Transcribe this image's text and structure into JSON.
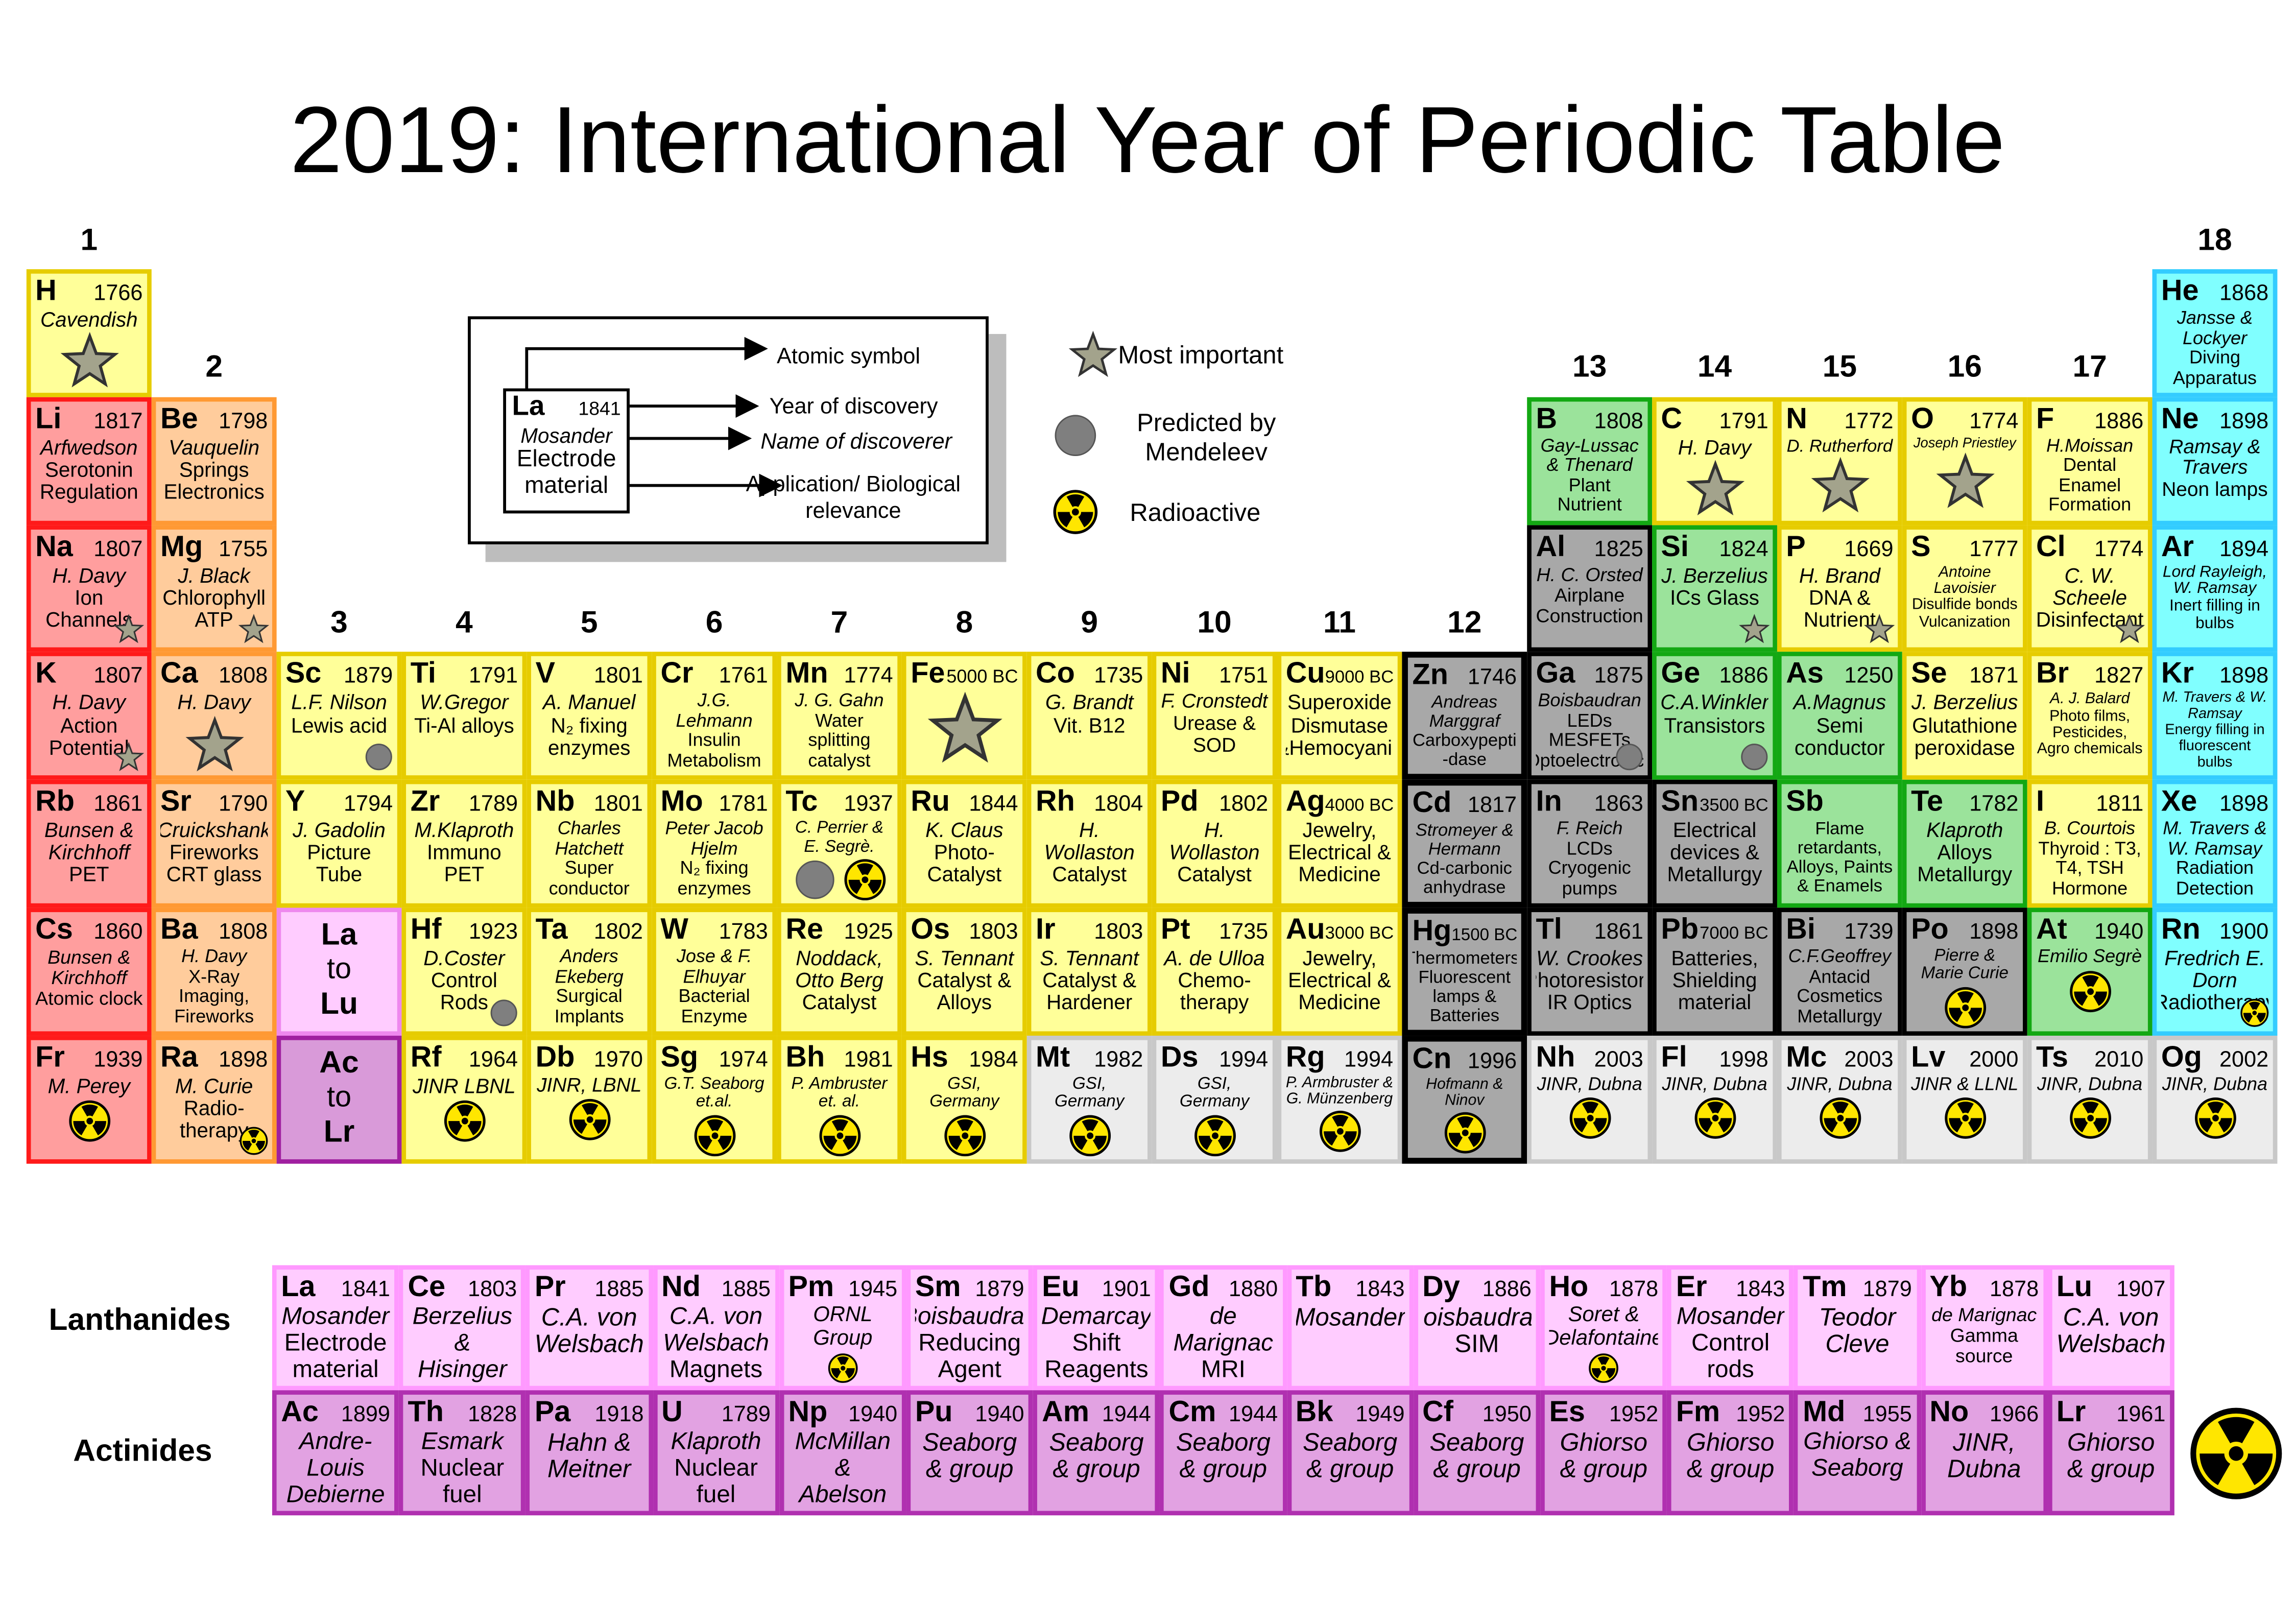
{
  "title": "2019: International Year of Periodic Table",
  "groups": [
    1,
    2,
    3,
    4,
    5,
    6,
    7,
    8,
    9,
    10,
    11,
    12,
    13,
    14,
    15,
    16,
    17,
    18
  ],
  "legend": {
    "sym": "La",
    "year": 1841,
    "by": "Mosander",
    "use": "Electrode material",
    "labels": [
      "Atomic symbol",
      "Year of discovery",
      "Name of discoverer",
      "Application/ Biological relevance"
    ],
    "icons": [
      "Most important",
      "Predicted by Mendeleev",
      "Radioactive"
    ]
  },
  "series_labels": [
    "Lanthanides",
    "Actinides"
  ],
  "placeholders": [
    [
      "La",
      "to",
      "Lu"
    ],
    [
      "Ac",
      "to",
      "Lr"
    ]
  ],
  "elements": [
    {
      "sym": "H",
      "year": 1766,
      "by": "Cavendish",
      "star": true
    },
    {
      "sym": "He",
      "year": 1868,
      "by": "Jansse & Lockyer",
      "use": "Diving Apparatus"
    },
    {
      "sym": "Li",
      "year": 1817,
      "by": "Arfwedson",
      "use": "Serotonin Regulation"
    },
    {
      "sym": "Be",
      "year": 1798,
      "by": "Vauquelin",
      "use": "Springs Electronics"
    },
    {
      "sym": "B",
      "year": 1808,
      "by": "Gay-Lussac & Thenard",
      "use": "Plant Nutrient"
    },
    {
      "sym": "C",
      "year": 1791,
      "by": "H. Davy",
      "star": true
    },
    {
      "sym": "N",
      "year": 1772,
      "by": "D. Rutherford",
      "star": true
    },
    {
      "sym": "O",
      "year": 1774,
      "by": "Joseph Priestley",
      "star": true
    },
    {
      "sym": "F",
      "year": 1886,
      "by": "H.Moissan",
      "use": "Dental Enamel Formation"
    },
    {
      "sym": "Ne",
      "year": 1898,
      "by": "Ramsay & Travers",
      "use": "Neon lamps"
    },
    {
      "sym": "Na",
      "year": 1807,
      "by": "H. Davy",
      "use": "Ion Channels",
      "star": true
    },
    {
      "sym": "Mg",
      "year": 1755,
      "by": "J. Black",
      "use": "Chlorophyll ATP",
      "star": true
    },
    {
      "sym": "Al",
      "year": 1825,
      "by": "H. C. Orsted",
      "use": "Airplane Construction"
    },
    {
      "sym": "Si",
      "year": 1824,
      "by": "J. Berzelius",
      "use": "ICs Glass",
      "star": true
    },
    {
      "sym": "P",
      "year": 1669,
      "by": "H. Brand",
      "use": "DNA & Nutrient",
      "star": true
    },
    {
      "sym": "S",
      "year": 1777,
      "by": "Antoine Lavoisier",
      "use": "Disulfide bonds Vulcanization"
    },
    {
      "sym": "Cl",
      "year": 1774,
      "by": "C. W. Scheele",
      "use": "Disinfectant",
      "star": true
    },
    {
      "sym": "Ar",
      "year": 1894,
      "by": "Lord Rayleigh, W. Ramsay",
      "use": "Inert filling in bulbs"
    },
    {
      "sym": "K",
      "year": 1807,
      "by": "H. Davy",
      "use": "Action Potential",
      "star": true
    },
    {
      "sym": "Ca",
      "year": 1808,
      "by": "H. Davy",
      "star": true
    },
    {
      "sym": "Sc",
      "year": 1879,
      "by": "L.F. Nilson",
      "use": "Lewis acid",
      "predicted": true
    },
    {
      "sym": "Ti",
      "year": 1791,
      "by": "W.Gregor",
      "use": "Ti-Al alloys"
    },
    {
      "sym": "V",
      "year": 1801,
      "by": "A. Manuel",
      "use": "N₂ fixing enzymes"
    },
    {
      "sym": "Cr",
      "year": 1761,
      "by": "J.G. Lehmann",
      "use": "Insulin Metabolism"
    },
    {
      "sym": "Mn",
      "year": 1774,
      "by": "J. G. Gahn",
      "use": "Water splitting catalyst"
    },
    {
      "sym": "Fe",
      "year": "5000 BC",
      "star": true
    },
    {
      "sym": "Co",
      "year": 1735,
      "by": "G. Brandt",
      "use": "Vit. B12"
    },
    {
      "sym": "Ni",
      "year": 1751,
      "by": "F. Cronstedt",
      "use": "Urease & SOD"
    },
    {
      "sym": "Cu",
      "year": "9000 BC",
      "use": "Superoxide Dismutase &Hemocyanin"
    },
    {
      "sym": "Zn",
      "year": 1746,
      "by": "Andreas Marggraf",
      "use": "Carboxypepti -dase"
    },
    {
      "sym": "Ga",
      "year": 1875,
      "by": "Boisbaudran",
      "use": "LEDs MESFETs Optoelectronics",
      "predicted": true
    },
    {
      "sym": "Ge",
      "year": 1886,
      "by": "C.A.Winkler",
      "use": "Transistors",
      "predicted": true
    },
    {
      "sym": "As",
      "year": 1250,
      "by": "A.Magnus",
      "use": "Semi conductor"
    },
    {
      "sym": "Se",
      "year": 1871,
      "by": "J. Berzelius",
      "use": "Glutathione peroxidase"
    },
    {
      "sym": "Br",
      "year": 1827,
      "by": "A. J. Balard",
      "use": "Photo films, Pesticides, Agro chemicals"
    },
    {
      "sym": "Kr",
      "year": 1898,
      "by": "M. Travers & W. Ramsay",
      "use": "Energy filling in fluorescent bulbs"
    },
    {
      "sym": "Rb",
      "year": 1861,
      "by": "Bunsen & Kirchhoff",
      "use": "PET"
    },
    {
      "sym": "Sr",
      "year": 1790,
      "by": "Cruickshank",
      "use": "Fireworks CRT glass"
    },
    {
      "sym": "Y",
      "year": 1794,
      "by": "J. Gadolin",
      "use": "Picture Tube"
    },
    {
      "sym": "Zr",
      "year": 1789,
      "by": "M.Klaproth",
      "use": "Immuno PET"
    },
    {
      "sym": "Nb",
      "year": 1801,
      "by": "Charles Hatchett",
      "use": "Super conductor"
    },
    {
      "sym": "Mo",
      "year": 1781,
      "by": "Peter Jacob Hjelm",
      "use": "N₂ fixing enzymes"
    },
    {
      "sym": "Tc",
      "year": 1937,
      "by": "C. Perrier & E. Segrè.",
      "predicted": true,
      "radioactive": true
    },
    {
      "sym": "Ru",
      "year": 1844,
      "by": "K. Claus",
      "use": "Photo-Catalyst"
    },
    {
      "sym": "Rh",
      "year": 1804,
      "by": "H. Wollaston",
      "use": "Catalyst"
    },
    {
      "sym": "Pd",
      "year": 1802,
      "by": "H. Wollaston",
      "use": "Catalyst"
    },
    {
      "sym": "Ag",
      "year": "4000 BC",
      "use": "Jewelry, Electrical & Medicine"
    },
    {
      "sym": "Cd",
      "year": 1817,
      "by": "Stromeyer & Hermann",
      "use": "Cd-carbonic anhydrase"
    },
    {
      "sym": "In",
      "year": 1863,
      "by": "F. Reich",
      "use": "LCDs Cryogenic pumps"
    },
    {
      "sym": "Sn",
      "year": "3500 BC",
      "use": "Electrical devices & Metallurgy"
    },
    {
      "sym": "Sb",
      "use": "Flame retardants, Alloys, Paints & Enamels"
    },
    {
      "sym": "Te",
      "year": 1782,
      "by": "Klaproth",
      "use": "Alloys Metallurgy"
    },
    {
      "sym": "I",
      "year": 1811,
      "by": "B. Courtois",
      "use": "Thyroid : T3, T4, TSH Hormone"
    },
    {
      "sym": "Xe",
      "year": 1898,
      "by": "M. Travers & W. Ramsay",
      "use": "Radiation Detection"
    },
    {
      "sym": "Cs",
      "year": 1860,
      "by": "Bunsen & Kirchhoff",
      "use": "Atomic clock"
    },
    {
      "sym": "Ba",
      "year": 1808,
      "by": "H. Davy",
      "use": "X-Ray Imaging, Fireworks"
    },
    {
      "sym": "La",
      "year": 1841,
      "by": "Mosander",
      "use": "Electrode material"
    },
    {
      "sym": "Ce",
      "year": 1803,
      "by": "Berzelius & Hisinger"
    },
    {
      "sym": "Pr",
      "year": 1885,
      "by": "C.A. von Welsbach"
    },
    {
      "sym": "Nd",
      "year": 1885,
      "by": "C.A. von Welsbach",
      "use": "Magnets"
    },
    {
      "sym": "Pm",
      "year": 1945,
      "by": "ORNL Group",
      "radioactive": true
    },
    {
      "sym": "Sm",
      "year": 1879,
      "by": "Boisbaudran",
      "use": "Reducing Agent"
    },
    {
      "sym": "Eu",
      "year": 1901,
      "by": "Demarcay",
      "use": "Shift Reagents"
    },
    {
      "sym": "Gd",
      "year": 1880,
      "by": "de Marignac",
      "use": "MRI"
    },
    {
      "sym": "Tb",
      "year": 1843,
      "by": "Mosander"
    },
    {
      "sym": "Dy",
      "year": 1886,
      "by": "Boisbaudran",
      "use": "SIM"
    },
    {
      "sym": "Ho",
      "year": 1878,
      "by": "Soret & Delafontaine",
      "radioactive": true
    },
    {
      "sym": "Er",
      "year": 1843,
      "by": "Mosander",
      "use": "Control rods"
    },
    {
      "sym": "Tm",
      "year": 1879,
      "by": "Teodor Cleve"
    },
    {
      "sym": "Yb",
      "year": 1878,
      "by": "de Marignac",
      "use": "Gamma source"
    },
    {
      "sym": "Lu",
      "year": 1907,
      "by": "C.A. von Welsbach"
    },
    {
      "sym": "Hf",
      "year": 1923,
      "by": "D.Coster",
      "use": "Control Rods",
      "predicted": true
    },
    {
      "sym": "Ta",
      "year": 1802,
      "by": "Anders Ekeberg",
      "use": "Surgical Implants"
    },
    {
      "sym": "W",
      "year": 1783,
      "by": "Jose & F. Elhuyar",
      "use": "Bacterial Enzyme"
    },
    {
      "sym": "Re",
      "year": 1925,
      "by": "Noddack, Otto Berg",
      "use": "Catalyst"
    },
    {
      "sym": "Os",
      "year": 1803,
      "by": "S. Tennant",
      "use": "Catalyst & Alloys"
    },
    {
      "sym": "Ir",
      "year": 1803,
      "by": "S. Tennant",
      "use": "Catalyst & Hardener"
    },
    {
      "sym": "Pt",
      "year": 1735,
      "by": "A. de Ulloa",
      "use": "Chemo-therapy"
    },
    {
      "sym": "Au",
      "year": "3000 BC",
      "use": "Jewelry, Electrical & Medicine"
    },
    {
      "sym": "Hg",
      "year": "1500 BC",
      "use": "Thermometers, Fluorescent lamps & Batteries"
    },
    {
      "sym": "Tl",
      "year": 1861,
      "by": "W. Crookes",
      "use": "Photoresistors IR Optics"
    },
    {
      "sym": "Pb",
      "year": "7000 BC",
      "use": "Batteries, Shielding material"
    },
    {
      "sym": "Bi",
      "year": 1739,
      "by": "C.F.Geoffrey",
      "use": "Antacid Cosmetics Metallurgy"
    },
    {
      "sym": "Po",
      "year": 1898,
      "by": "Pierre & Marie Curie",
      "radioactive": true
    },
    {
      "sym": "At",
      "year": 1940,
      "by": "Emilio Segrè",
      "radioactive": true
    },
    {
      "sym": "Rn",
      "year": 1900,
      "by": "Fredrich E. Dorn",
      "use": "Radiotherapy",
      "radioactive": true
    },
    {
      "sym": "Fr",
      "year": 1939,
      "by": "M. Perey",
      "radioactive": true
    },
    {
      "sym": "Ra",
      "year": 1898,
      "by": "M. Curie",
      "use": "Radio-therapy",
      "radioactive": true
    },
    {
      "sym": "Ac",
      "year": 1899,
      "by": "Andre-Louis Debierne"
    },
    {
      "sym": "Th",
      "year": 1828,
      "by": "Esmark",
      "use": "Nuclear fuel"
    },
    {
      "sym": "Pa",
      "year": 1918,
      "by": "Hahn & Meitner"
    },
    {
      "sym": "U",
      "year": 1789,
      "by": "Klaproth",
      "use": "Nuclear fuel"
    },
    {
      "sym": "Np",
      "year": 1940,
      "by": "McMillan & Abelson"
    },
    {
      "sym": "Pu",
      "year": 1940,
      "by": "Seaborg & group"
    },
    {
      "sym": "Am",
      "year": 1944,
      "by": "Seaborg & group"
    },
    {
      "sym": "Cm",
      "year": 1944,
      "by": "Seaborg & group"
    },
    {
      "sym": "Bk",
      "year": 1949,
      "by": "Seaborg & group"
    },
    {
      "sym": "Cf",
      "year": 1950,
      "by": "Seaborg & group"
    },
    {
      "sym": "Es",
      "year": 1952,
      "by": "Ghiorso & group"
    },
    {
      "sym": "Fm",
      "year": 1952,
      "by": "Ghiorso & group"
    },
    {
      "sym": "Md",
      "year": 1955,
      "by": "Ghiorso & Seaborg"
    },
    {
      "sym": "No",
      "year": 1966,
      "by": "JINR, Dubna"
    },
    {
      "sym": "Lr",
      "year": 1961,
      "by": "Ghiorso & group"
    },
    {
      "sym": "Rf",
      "year": 1964,
      "by": "JINR LBNL",
      "radioactive": true
    },
    {
      "sym": "Db",
      "year": 1970,
      "by": "JINR, LBNL",
      "radioactive": true
    },
    {
      "sym": "Sg",
      "year": 1974,
      "by": "G.T. Seaborg et.al.",
      "radioactive": true
    },
    {
      "sym": "Bh",
      "year": 1981,
      "by": "P. Ambruster et. al.",
      "radioactive": true
    },
    {
      "sym": "Hs",
      "year": 1984,
      "by": "GSI, Germany",
      "radioactive": true
    },
    {
      "sym": "Mt",
      "year": 1982,
      "by": "GSI, Germany",
      "radioactive": true
    },
    {
      "sym": "Ds",
      "year": 1994,
      "by": "GSI, Germany",
      "radioactive": true
    },
    {
      "sym": "Rg",
      "year": 1994,
      "by": "P. Armbruster & G. Münzenberg",
      "radioactive": true
    },
    {
      "sym": "Cn",
      "year": 1996,
      "by": "Hofmann & Ninov",
      "radioactive": true
    },
    {
      "sym": "Nh",
      "year": 2003,
      "by": "JINR, Dubna",
      "radioactive": true
    },
    {
      "sym": "Fl",
      "year": 1998,
      "by": "JINR, Dubna",
      "radioactive": true
    },
    {
      "sym": "Mc",
      "year": 2003,
      "by": "JINR, Dubna",
      "radioactive": true
    },
    {
      "sym": "Lv",
      "year": 2000,
      "by": "JINR & LLNL",
      "radioactive": true
    },
    {
      "sym": "Ts",
      "year": 2010,
      "by": "JINR, Dubna",
      "radioactive": true
    },
    {
      "sym": "Og",
      "year": 2002,
      "by": "JINR, Dubna",
      "radioactive": true
    }
  ]
}
